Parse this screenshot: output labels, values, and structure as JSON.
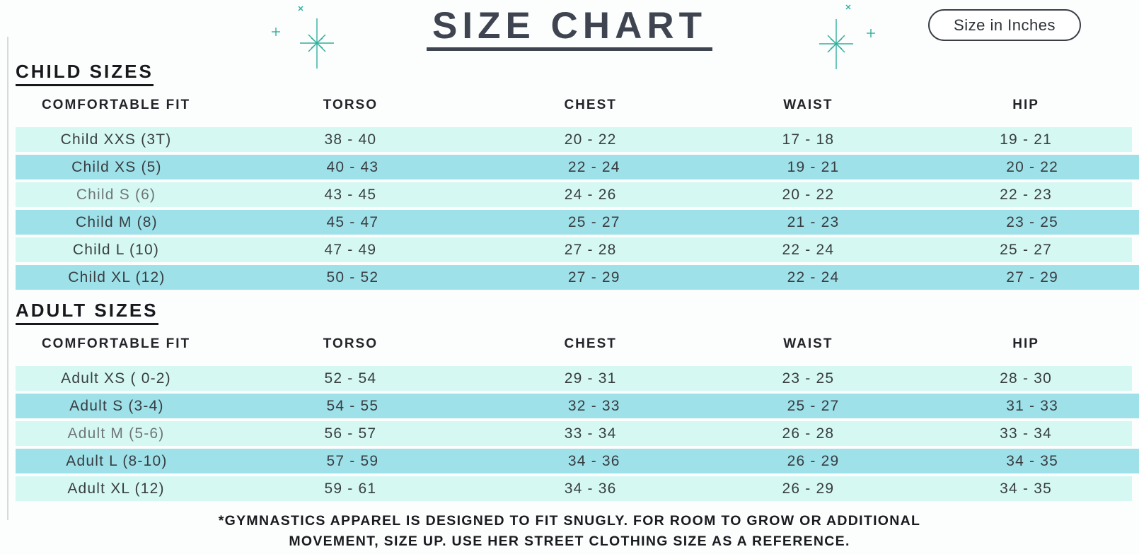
{
  "header": {
    "title": "SIZE CHART",
    "badge": "Size in Inches"
  },
  "columns": [
    "COMFORTABLE FIT",
    "TORSO",
    "CHEST",
    "WAIST",
    "HIP"
  ],
  "sections": [
    {
      "heading": "CHILD SIZES",
      "rows": [
        {
          "fit": "Child XXS (3T)",
          "torso": "38 - 40",
          "chest": "20 - 22",
          "waist": "17 - 18",
          "hip": "19 - 21"
        },
        {
          "fit": "Child XS (5)",
          "torso": "40 - 43",
          "chest": "22 - 24",
          "waist": "19 - 21",
          "hip": "20 - 22"
        },
        {
          "fit": "Child S (6)",
          "torso": "43 - 45",
          "chest": "24 - 26",
          "waist": "20 - 22",
          "hip": "22 - 23",
          "muted": true
        },
        {
          "fit": "Child M (8)",
          "torso": "45 - 47",
          "chest": "25 - 27",
          "waist": "21 - 23",
          "hip": "23 - 25"
        },
        {
          "fit": "Child L (10)",
          "torso": "47 - 49",
          "chest": "27 - 28",
          "waist": "22 - 24",
          "hip": "25 - 27"
        },
        {
          "fit": "Child XL (12)",
          "torso": "50 - 52",
          "chest": "27 - 29",
          "waist": "22 - 24",
          "hip": "27 - 29"
        }
      ]
    },
    {
      "heading": "ADULT SIZES",
      "rows": [
        {
          "fit": "Adult XS ( 0-2)",
          "torso": "52 - 54",
          "chest": "29 - 31",
          "waist": "23 - 25",
          "hip": "28 - 30"
        },
        {
          "fit": "Adult S (3-4)",
          "torso": "54 - 55",
          "chest": "32 - 33",
          "waist": "25 - 27",
          "hip": "31 - 33"
        },
        {
          "fit": "Adult M (5-6)",
          "torso": "56 - 57",
          "chest": "33 - 34",
          "waist": "26 - 28",
          "hip": "33 - 34",
          "muted": true
        },
        {
          "fit": "Adult L (8-10)",
          "torso": "57 - 59",
          "chest": "34 - 36",
          "waist": "26 - 29",
          "hip": "34 - 35"
        },
        {
          "fit": "Adult XL (12)",
          "torso": "59 - 61",
          "chest": "34 - 36",
          "waist": "26 - 29",
          "hip": "34 - 35"
        }
      ]
    }
  ],
  "footnote": "*GYMNASTICS APPAREL IS DESIGNED TO FIT SNUGLY. FOR ROOM TO GROW OR ADDITIONAL MOVEMENT, SIZE UP. USE HER STREET CLOTHING SIZE AS A REFERENCE.",
  "icons": [
    "sparkle-icon",
    "plus-sparkle-icon",
    "x-sparkle-icon"
  ],
  "colors": {
    "row_light": "#d5f8f3",
    "row_dark": "#9fe1e9",
    "sparkle_teal": "#2fae9c",
    "title": "#3e4450"
  }
}
